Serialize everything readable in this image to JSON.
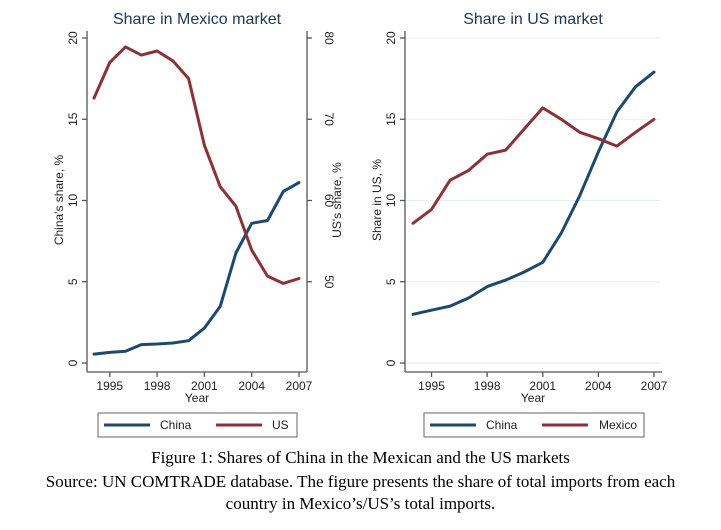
{
  "colors": {
    "china": "#1a4a72",
    "secondary": "#903035"
  },
  "chart_data": [
    {
      "type": "line",
      "title": "Share in Mexico market",
      "xlabel": "Year",
      "ylabel": "China's share, %",
      "ylabel_right": "US's share, %",
      "x": [
        1994,
        1995,
        1996,
        1997,
        1998,
        1999,
        2000,
        2001,
        2002,
        2003,
        2004,
        2005,
        2006,
        2007
      ],
      "xticks": [
        "1995",
        "1998",
        "2001",
        "2004",
        "2007"
      ],
      "xlim": [
        1994,
        2007
      ],
      "ylim": [
        0,
        20
      ],
      "yticks": [
        "0",
        "5",
        "10",
        "15",
        "20"
      ],
      "ylim_right": [
        40,
        80
      ],
      "yticks_right": [
        "50",
        "60",
        "70",
        "80"
      ],
      "grid": false,
      "legend_position": "bottom",
      "series": [
        {
          "name": "China",
          "axis": "left",
          "color_key": "china",
          "values": [
            0.55,
            0.65,
            0.72,
            1.13,
            1.17,
            1.23,
            1.37,
            2.15,
            3.48,
            6.77,
            8.6,
            8.77,
            10.55,
            11.1
          ]
        },
        {
          "name": "US",
          "axis": "right",
          "color_key": "secondary",
          "values": [
            72.6,
            77.0,
            78.9,
            77.9,
            78.4,
            77.2,
            75.0,
            66.8,
            61.7,
            59.3,
            53.9,
            50.7,
            49.8,
            50.4
          ]
        }
      ]
    },
    {
      "type": "line",
      "title": "Share in US market",
      "xlabel": "Year",
      "ylabel": "Share in US, %",
      "x": [
        1994,
        1995,
        1996,
        1997,
        1998,
        1999,
        2000,
        2001,
        2002,
        2003,
        2004,
        2005,
        2006,
        2007
      ],
      "xticks": [
        "1995",
        "1998",
        "2001",
        "2004",
        "2007"
      ],
      "xlim": [
        1994,
        2007
      ],
      "ylim": [
        0,
        20
      ],
      "yticks": [
        "0",
        "5",
        "10",
        "15",
        "20"
      ],
      "grid": true,
      "legend_position": "bottom",
      "series": [
        {
          "name": "China",
          "axis": "left",
          "color_key": "china",
          "values": [
            3.0,
            3.25,
            3.5,
            4.0,
            4.7,
            5.1,
            5.6,
            6.2,
            8.0,
            10.3,
            13.0,
            15.45,
            17.0,
            17.9
          ]
        },
        {
          "name": "Mexico",
          "axis": "left",
          "color_key": "secondary",
          "values": [
            8.6,
            9.45,
            11.25,
            11.85,
            12.85,
            13.1,
            14.4,
            15.7,
            15.0,
            14.2,
            13.8,
            13.35,
            14.2,
            15.0
          ]
        }
      ]
    }
  ],
  "caption": {
    "title": "Figure 1: Shares of China in the Mexican and the US markets",
    "source_line1": "Source: UN COMTRADE database. The figure presents the share of total imports from each",
    "source_line2": "country in Mexico’s/US’s total imports."
  }
}
